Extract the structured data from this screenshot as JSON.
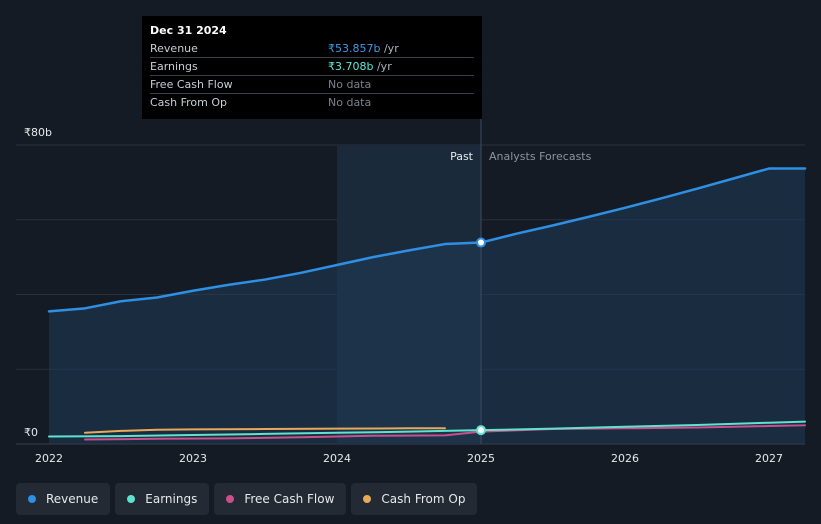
{
  "tooltip": {
    "date": "Dec 31 2024",
    "rows": [
      {
        "label": "Revenue",
        "value": "₹53.857b",
        "unit": " /yr",
        "color": "#3d9ae6"
      },
      {
        "label": "Earnings",
        "value": "₹3.708b",
        "unit": " /yr",
        "color": "#5ee8d8"
      },
      {
        "label": "Free Cash Flow",
        "value": "No data",
        "unit": "",
        "color": "#7b818b"
      },
      {
        "label": "Cash From Op",
        "value": "No data",
        "unit": "",
        "color": "#7b818b"
      }
    ]
  },
  "legend": [
    {
      "label": "Revenue",
      "color": "#2f8fe3"
    },
    {
      "label": "Earnings",
      "color": "#5fe3cf"
    },
    {
      "label": "Free Cash Flow",
      "color": "#c9508a"
    },
    {
      "label": "Cash From Op",
      "color": "#e9a95a"
    }
  ],
  "chart_data": {
    "type": "line",
    "ylabel_top": "₹80b",
    "ylabel_bottom": "₹0",
    "ylim": [
      0,
      80
    ],
    "xlim": [
      2022.0,
      2027.25
    ],
    "x_ticks": [
      "2022",
      "2023",
      "2024",
      "2025",
      "2026",
      "2027"
    ],
    "x_tick_values": [
      2022,
      2023,
      2024,
      2025,
      2026,
      2027
    ],
    "past_label": "Past",
    "forecast_label": "Analysts Forecasts",
    "divider_x": 2025.0,
    "shaded_past_start": 2024.0,
    "grid": true,
    "series": [
      {
        "name": "Revenue",
        "color": "#2f8fe3",
        "x": [
          2022.0,
          2022.25,
          2022.5,
          2022.75,
          2023.0,
          2023.25,
          2023.5,
          2023.75,
          2024.0,
          2024.25,
          2024.5,
          2024.75,
          2025.0,
          2025.25,
          2025.5,
          2025.75,
          2026.0,
          2026.25,
          2026.5,
          2026.75,
          2027.0,
          2027.25
        ],
        "y": [
          35.5,
          36.3,
          38.2,
          39.2,
          41.0,
          42.6,
          44.0,
          45.8,
          47.9,
          50.0,
          51.8,
          53.5,
          53.9,
          56.3,
          58.5,
          60.8,
          63.2,
          65.7,
          68.3,
          71.0,
          73.7,
          73.7
        ]
      },
      {
        "name": "Earnings",
        "color": "#5fe3cf",
        "x": [
          2022.0,
          2022.5,
          2023.0,
          2023.5,
          2024.0,
          2024.5,
          2025.0,
          2025.5,
          2026.0,
          2026.5,
          2027.0,
          2027.25
        ],
        "y": [
          2.0,
          2.1,
          2.4,
          2.7,
          3.0,
          3.3,
          3.7,
          4.1,
          4.6,
          5.1,
          5.7,
          6.0
        ]
      },
      {
        "name": "Free Cash Flow",
        "color": "#c9508a",
        "x": [
          2022.25,
          2022.75,
          2023.25,
          2023.75,
          2024.25,
          2024.75,
          2025.0,
          2025.5,
          2026.0,
          2026.5,
          2027.0,
          2027.25
        ],
        "y": [
          1.2,
          1.4,
          1.5,
          1.8,
          2.2,
          2.3,
          3.3,
          4.0,
          4.2,
          4.4,
          4.8,
          5.0
        ]
      },
      {
        "name": "Cash From Op",
        "color": "#e9a95a",
        "x": [
          2022.25,
          2022.5,
          2022.75,
          2023.0,
          2023.5,
          2024.0,
          2024.5,
          2024.75
        ],
        "y": [
          3.0,
          3.5,
          3.8,
          3.9,
          4.0,
          4.1,
          4.2,
          4.2
        ]
      }
    ],
    "highlight_points": [
      {
        "series": "Revenue",
        "x": 2025.0,
        "y": 53.9
      },
      {
        "series": "Earnings",
        "x": 2025.0,
        "y": 3.7
      }
    ]
  }
}
